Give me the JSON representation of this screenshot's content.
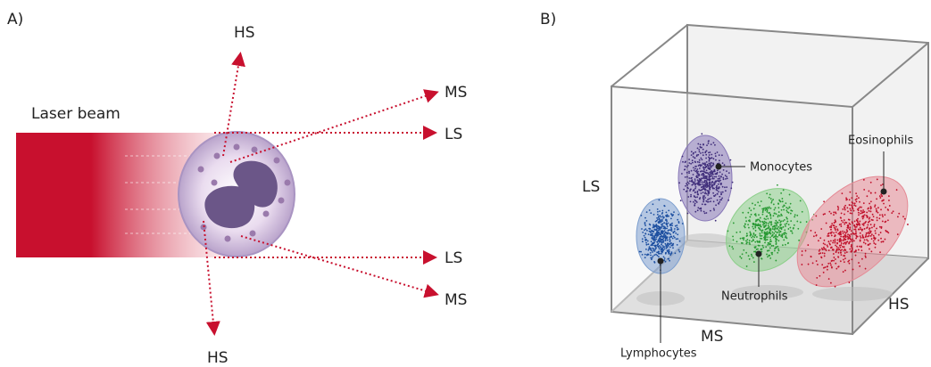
{
  "panel_a": {
    "label": "A)",
    "beam_label": "Laser beam",
    "scatter_labels": {
      "hs_top": "HS",
      "ms_top": "MS",
      "ls_top": "LS",
      "ls_bottom": "LS",
      "ms_bottom": "MS",
      "hs_bottom": "HS"
    }
  },
  "panel_b": {
    "label": "B)",
    "axes": {
      "ls": "LS",
      "ms": "MS",
      "hs": "HS"
    },
    "populations": {
      "monocytes": "Monocytes",
      "eosinophils": "Eosinophils",
      "neutrophils": "Neutrophils",
      "lymphocytes": "Lymphocytes"
    }
  }
}
